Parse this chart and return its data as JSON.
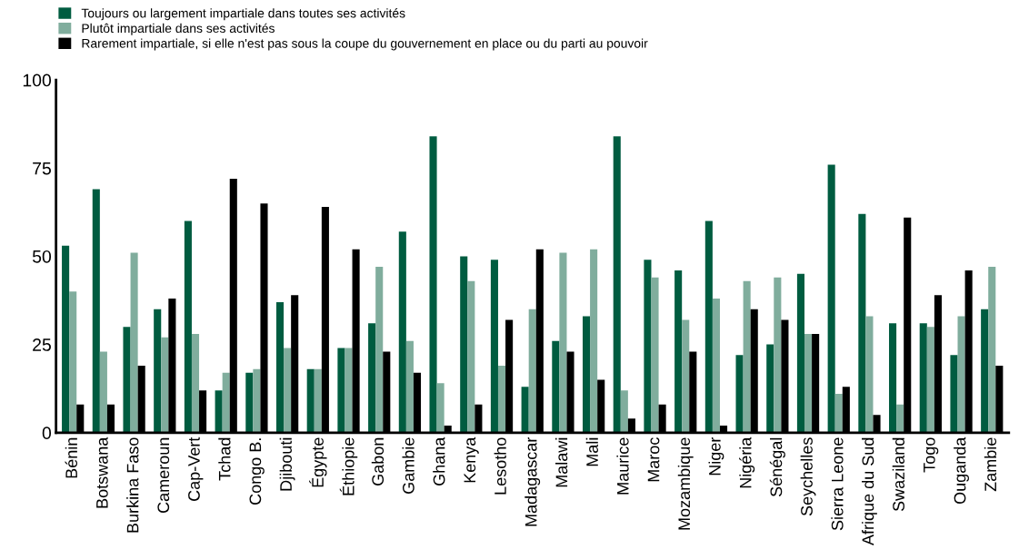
{
  "chart_data": {
    "type": "bar",
    "categories": [
      "Bénin",
      "Botswana",
      "Burkina Faso",
      "Cameroun",
      "Cap-Vert",
      "Tchad",
      "Congo B.",
      "Djibouti",
      "Égypte",
      "Éthiopie",
      "Gabon",
      "Gambie",
      "Ghana",
      "Kenya",
      "Lesotho",
      "Madagascar",
      "Malawi",
      "Mali",
      "Maurice",
      "Maroc",
      "Mozambique",
      "Niger",
      "Nigéria",
      "Sénégal",
      "Seychelles",
      "Sierra Leone",
      "Afrique du Sud",
      "Swaziland",
      "Togo",
      "Ouganda",
      "Zambie"
    ],
    "series": [
      {
        "name": "Toujours ou largement impartiale dans toutes ses activités",
        "color": "#005c40",
        "values": [
          53,
          69,
          30,
          35,
          60,
          12,
          17,
          37,
          18,
          24,
          31,
          57,
          84,
          50,
          49,
          13,
          26,
          33,
          84,
          49,
          46,
          60,
          22,
          25,
          45,
          76,
          62,
          31,
          31,
          22,
          35
        ]
      },
      {
        "name": "Plutôt impartiale dans ses activités",
        "color": "#80ad9d",
        "values": [
          40,
          23,
          51,
          27,
          28,
          17,
          18,
          24,
          18,
          24,
          47,
          26,
          14,
          43,
          19,
          35,
          51,
          52,
          12,
          44,
          32,
          38,
          43,
          44,
          28,
          11,
          33,
          8,
          30,
          33,
          47
        ]
      },
      {
        "name": "Rarement impartiale, si elle n'est pas sous la coupe du gouvernement en place ou du parti au pouvoir",
        "color": "#000000",
        "values": [
          8,
          8,
          19,
          38,
          12,
          72,
          65,
          39,
          64,
          52,
          23,
          17,
          2,
          8,
          32,
          52,
          23,
          15,
          4,
          8,
          23,
          2,
          35,
          32,
          28,
          13,
          5,
          61,
          39,
          46,
          19
        ]
      }
    ],
    "ylim": [
      0,
      100
    ],
    "yticks": [
      0,
      25,
      50,
      75,
      100
    ],
    "grid": false,
    "legend": "top left"
  }
}
